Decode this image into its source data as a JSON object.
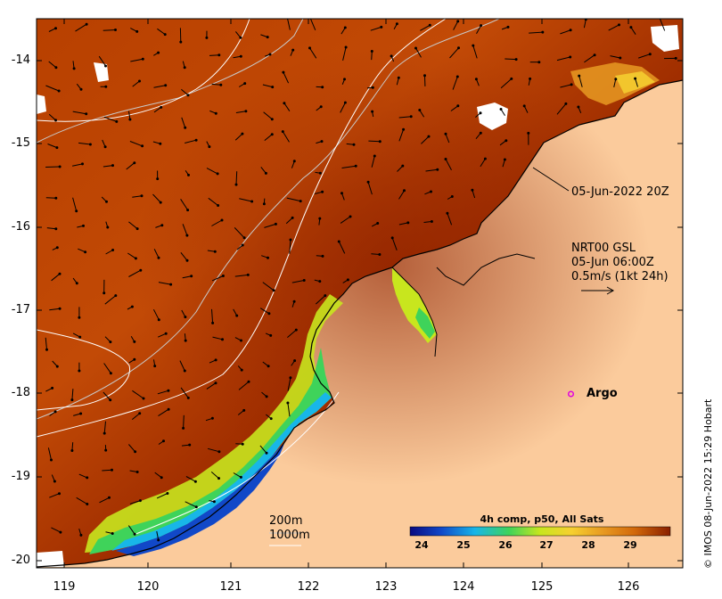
{
  "map": {
    "lat_ticks": [
      "-14",
      "-15",
      "-16",
      "-17",
      "-18",
      "-19",
      "-20"
    ],
    "lon_ticks": [
      "119",
      "120",
      "121",
      "122",
      "123",
      "124",
      "125",
      "126"
    ],
    "lat_range": [
      -20.1,
      -13.5
    ],
    "lon_range": [
      118.6,
      126.7
    ],
    "land_color": "#fbcb9c",
    "ocean_colors": [
      "#9a2a00",
      "#bb4400",
      "#d36a0b",
      "#e89a22",
      "#f6d030",
      "#c8e61e",
      "#3fd35a",
      "#18b6e8",
      "#1148c8",
      "#0a0a80"
    ]
  },
  "annotations": {
    "date_label": "05-Jun-2022 20Z",
    "current_source": "NRT00 GSL",
    "current_time": "05-Jun 06:00Z",
    "current_scale": "0.5m/s (1kt 24h)",
    "argo_label": "Argo",
    "contour_200": "200m",
    "contour_1000": "1000m",
    "credit": "© IMOS 08-Jun-2022 15:29 Hobart"
  },
  "colorbar": {
    "title": "4h comp, p50, All Sats",
    "ticks": [
      "24",
      "25",
      "26",
      "27",
      "28",
      "29"
    ],
    "colors": [
      "#0a0a80",
      "#1148c8",
      "#18b6e8",
      "#3fd35a",
      "#c8e61e",
      "#f6d030",
      "#e89a22",
      "#d36a0b",
      "#bb4400",
      "#9a2a00"
    ]
  }
}
